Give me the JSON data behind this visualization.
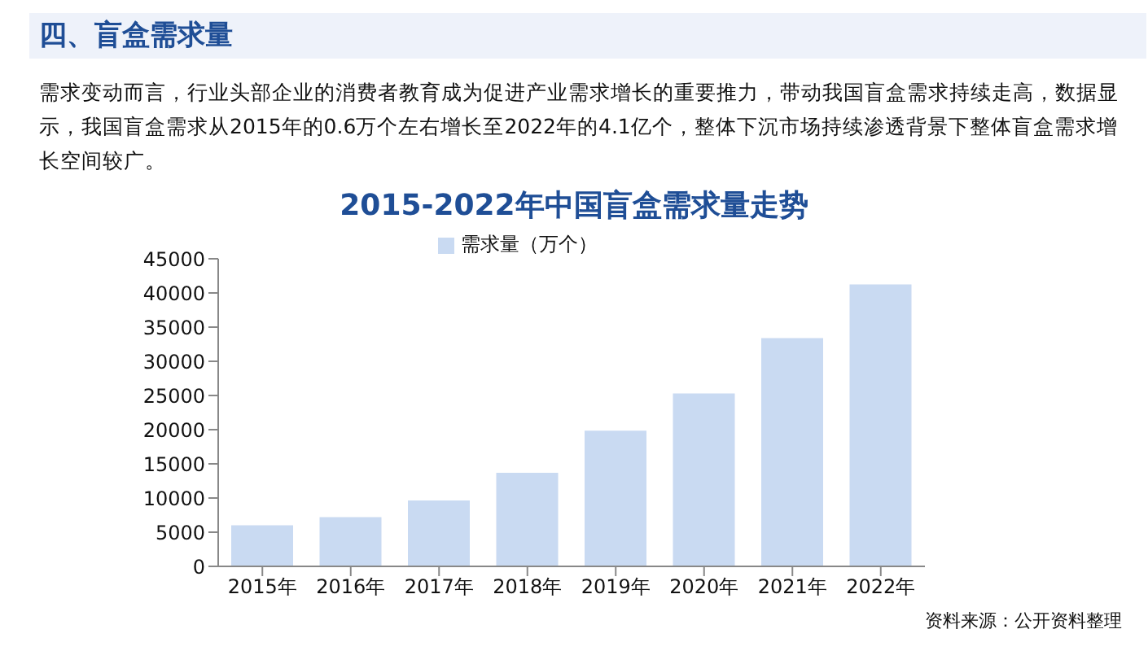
{
  "chart_data": {
    "type": "bar",
    "title": "2015-2022年中国盲盒需求量走势",
    "annotations": [
      "四、盲盒需求量",
      "需求变动而言，行业头部企业的消费者教育成为促进产业需求增长的重要推力，带动我国盲盒需求持续走高，数据显示，我国盲盒需求从2015年的0.6万个左右增长至2022年的4.1亿个，整体下沉市场持续渗透背景下整体盲盒需求增长空间较广。",
      "资料来源：公开资料整理"
    ],
    "categories": [
      "2015年",
      "2016年",
      "2017年",
      "2018年",
      "2019年",
      "2020年",
      "2021年",
      "2022年"
    ],
    "series": [
      {
        "name": "需求量（万个）",
        "color": "#c9daf2",
        "values": [
          6000,
          7200,
          9650,
          13700,
          19850,
          25300,
          33400,
          41250
        ]
      }
    ],
    "ylim": [
      0,
      45000
    ],
    "yticks": [
      0,
      5000,
      10000,
      15000,
      20000,
      25000,
      30000,
      35000,
      40000,
      45000
    ],
    "grid": false,
    "legend": "top"
  }
}
